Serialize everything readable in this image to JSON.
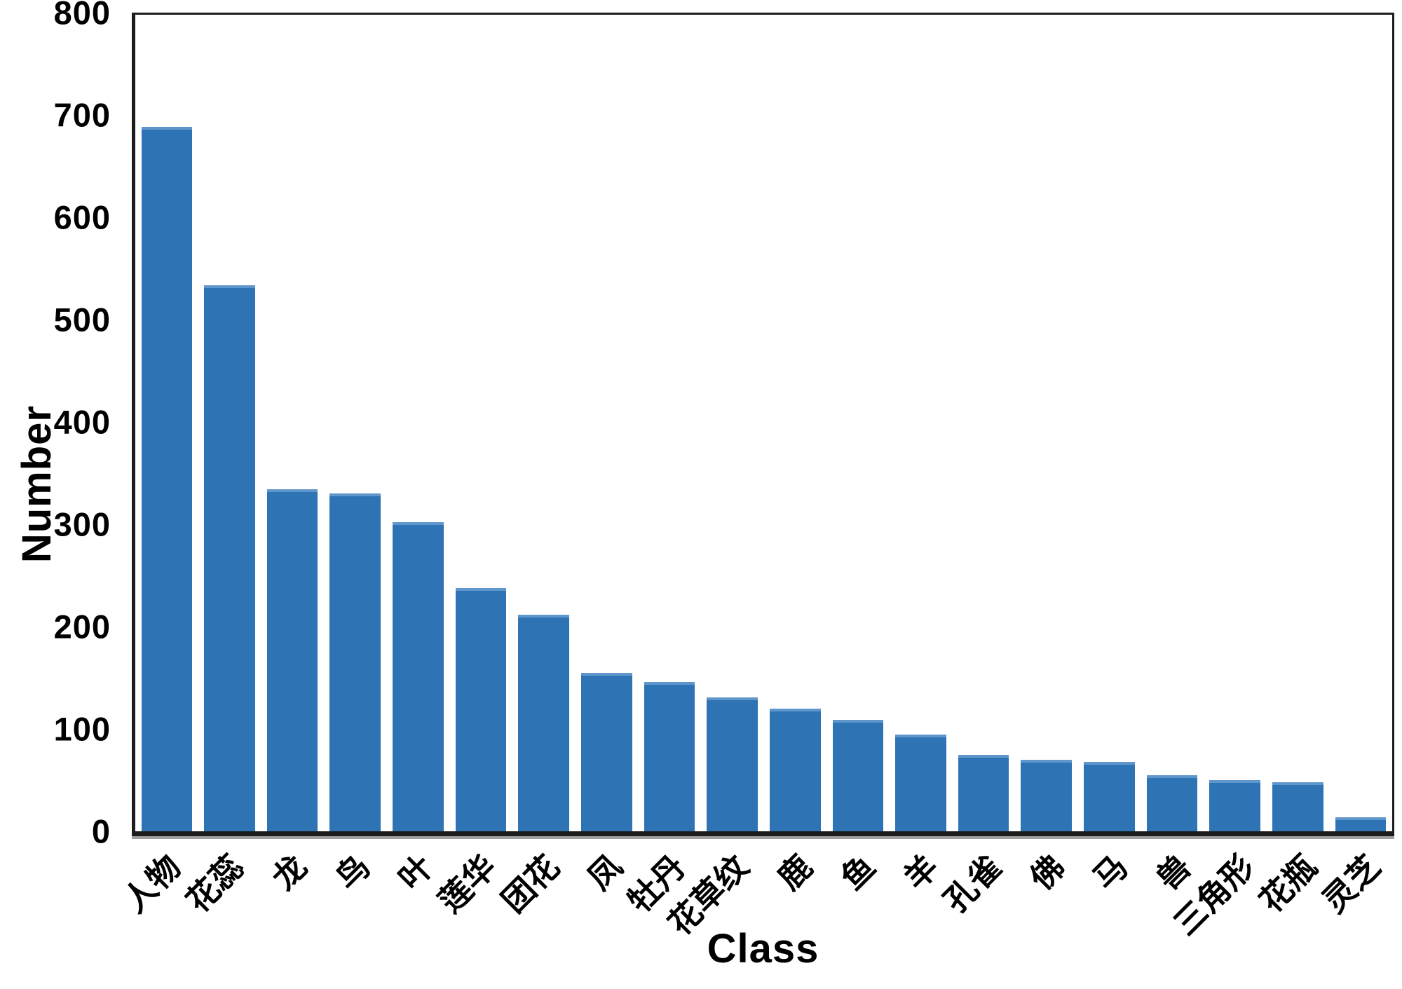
{
  "chart_data": {
    "type": "bar",
    "title": "",
    "xlabel": "Class",
    "ylabel": "Number",
    "ylim": [
      0,
      800
    ],
    "y_tick_step": 100,
    "y_ticks": [
      0,
      100,
      200,
      300,
      400,
      500,
      600,
      700,
      800
    ],
    "grid": false,
    "legend": null,
    "bar_color": "#2e74b5",
    "axis_color": "#1c1c1c",
    "categories": [
      "人物",
      "花蕊",
      "龙",
      "鸟",
      "叶",
      "莲华",
      "团花",
      "凤",
      "牡丹",
      "花草纹",
      "鹿",
      "鱼",
      "羊",
      "孔雀",
      "佛",
      "马",
      "兽",
      "三角形",
      "花瓶",
      "灵芝"
    ],
    "values": [
      690,
      535,
      335,
      331,
      303,
      238,
      212,
      155,
      146,
      131,
      120,
      109,
      95,
      75,
      70,
      68,
      55,
      50,
      48,
      14
    ]
  }
}
